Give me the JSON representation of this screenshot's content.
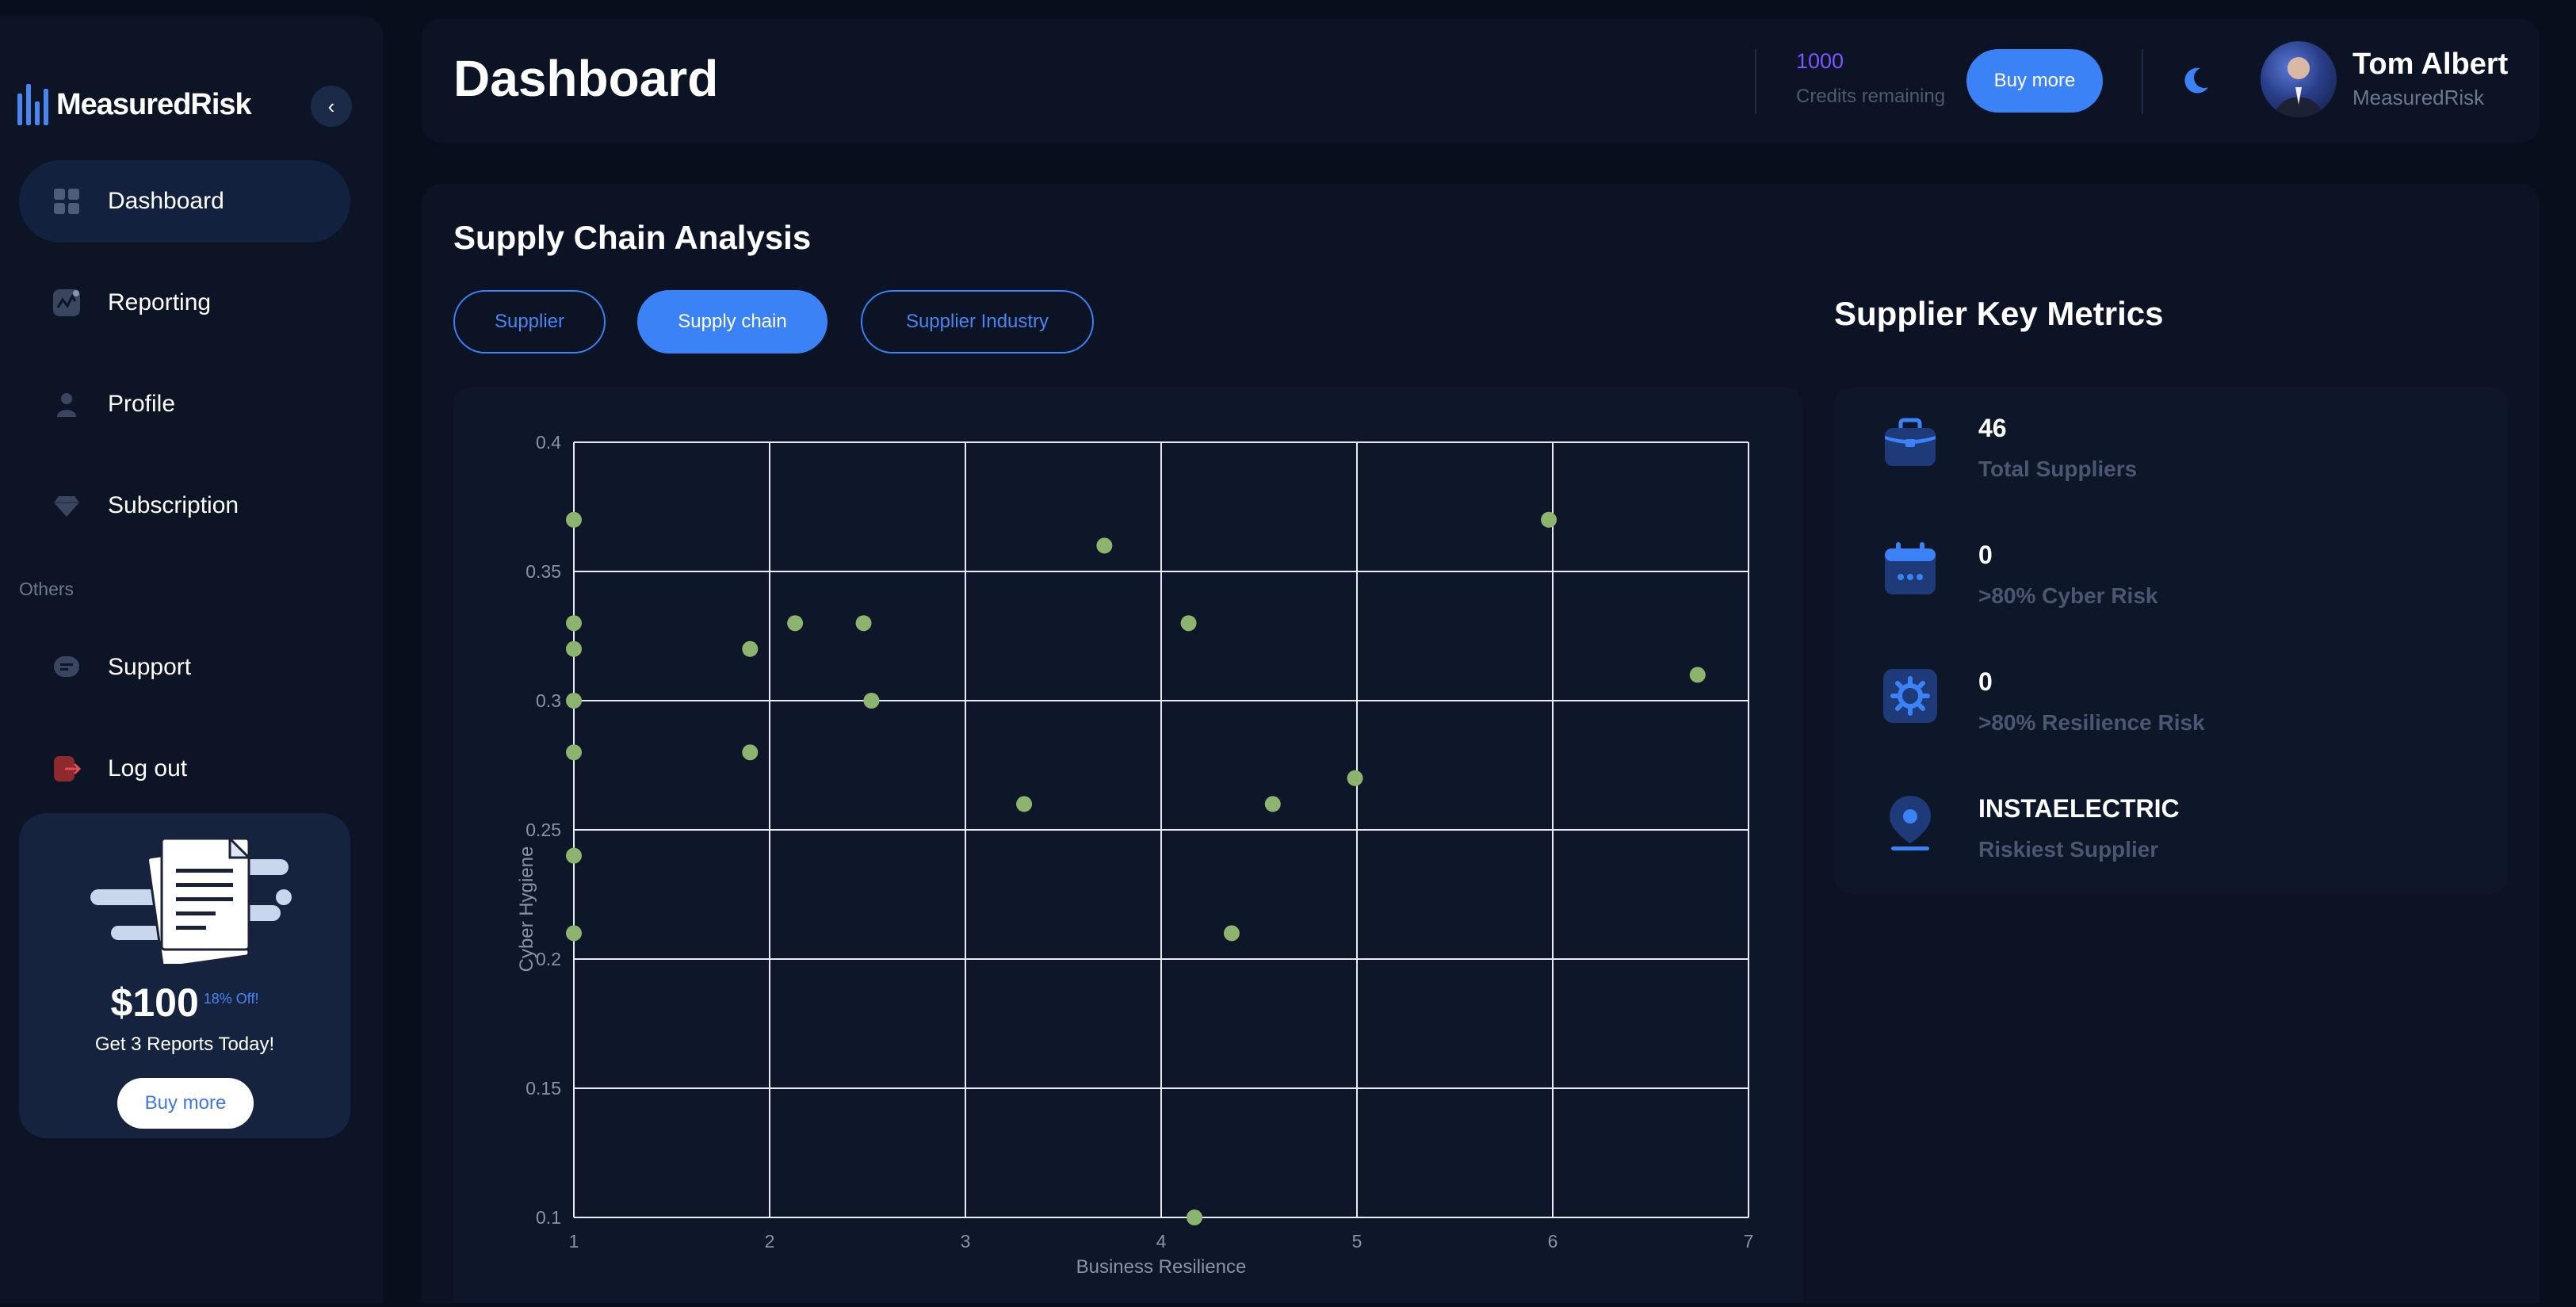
{
  "sidebar": {
    "brand": "MeasuredRisk",
    "nav": [
      {
        "label": "Dashboard",
        "icon": "grid-icon",
        "active": true
      },
      {
        "label": "Reporting",
        "icon": "chart-line-icon"
      },
      {
        "label": "Profile",
        "icon": "user-icon"
      },
      {
        "label": "Subscription",
        "icon": "diamond-icon"
      }
    ],
    "others_label": "Others",
    "others": [
      {
        "label": "Support",
        "icon": "chat-icon"
      },
      {
        "label": "Log out",
        "icon": "logout-icon"
      }
    ],
    "promo": {
      "price": "$100",
      "discount": "18% Off!",
      "text": "Get 3 Reports Today!",
      "button": "Buy more"
    }
  },
  "header": {
    "title": "Dashboard",
    "credits": "1000",
    "credits_label": "Credits remaining",
    "buy_button": "Buy more",
    "user_name": "Tom Albert",
    "user_org": "MeasuredRisk"
  },
  "main": {
    "section_title": "Supply Chain Analysis",
    "tabs": [
      {
        "label": "Supplier",
        "active": false
      },
      {
        "label": "Supply chain",
        "active": true
      },
      {
        "label": "Supplier Industry",
        "active": false
      }
    ],
    "metrics_title": "Supplier Key Metrics",
    "metrics": [
      {
        "value": "46",
        "label": "Total Suppliers",
        "icon": "briefcase-icon"
      },
      {
        "value": "0",
        "label": ">80% Cyber Risk",
        "icon": "calendar-icon"
      },
      {
        "value": "0",
        "label": ">80% Resilience Risk",
        "icon": "gear-icon"
      },
      {
        "value": "INSTAELECTRIC",
        "label": "Riskiest Supplier",
        "icon": "location-pin-icon"
      }
    ]
  },
  "colors": {
    "accent": "#3b82f6",
    "point": "#8db46e",
    "background": "#080e1b",
    "panel": "#0b1324"
  },
  "chart_data": {
    "type": "scatter",
    "xlabel": "Business Resilience",
    "ylabel": "Cyber Hygiene",
    "xlim": [
      1,
      7
    ],
    "ylim": [
      0.1,
      0.4
    ],
    "xticks": [
      "1",
      "2",
      "3",
      "4",
      "5",
      "6",
      "7"
    ],
    "yticks": [
      "0.1",
      "0.15",
      "0.2",
      "0.25",
      "0.3",
      "0.35",
      "0.4"
    ],
    "grid": true,
    "points": [
      {
        "x": 1.0,
        "y": 0.37
      },
      {
        "x": 1.0,
        "y": 0.33
      },
      {
        "x": 1.0,
        "y": 0.32
      },
      {
        "x": 1.0,
        "y": 0.3
      },
      {
        "x": 1.0,
        "y": 0.28
      },
      {
        "x": 1.0,
        "y": 0.24
      },
      {
        "x": 1.0,
        "y": 0.21
      },
      {
        "x": 1.9,
        "y": 0.32
      },
      {
        "x": 1.9,
        "y": 0.28
      },
      {
        "x": 2.13,
        "y": 0.33
      },
      {
        "x": 2.48,
        "y": 0.33
      },
      {
        "x": 2.52,
        "y": 0.3
      },
      {
        "x": 3.3,
        "y": 0.26
      },
      {
        "x": 3.71,
        "y": 0.36
      },
      {
        "x": 4.14,
        "y": 0.33
      },
      {
        "x": 4.17,
        "y": 0.1
      },
      {
        "x": 4.36,
        "y": 0.21
      },
      {
        "x": 4.57,
        "y": 0.26
      },
      {
        "x": 4.99,
        "y": 0.27
      },
      {
        "x": 5.98,
        "y": 0.37
      },
      {
        "x": 6.74,
        "y": 0.31
      }
    ]
  }
}
